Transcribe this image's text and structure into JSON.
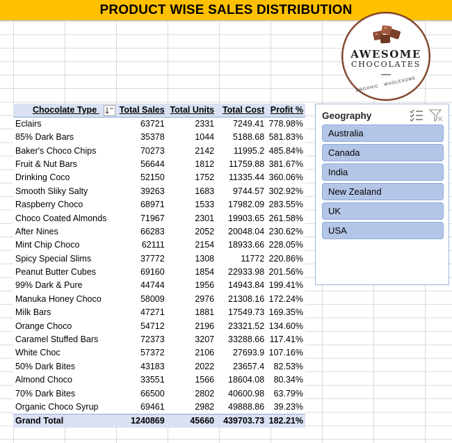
{
  "title": "PRODUCT WISE SALES DISTRIBUTION",
  "logo": {
    "name": "AWESOME",
    "subtitle": "CHOCOLATES",
    "tagline": "ORGANIC · WHOLESOME"
  },
  "pivot": {
    "headers": [
      "Chocolate Type",
      "Total Sales",
      "Total Units",
      "Total Cost",
      "Profit %"
    ],
    "rows": [
      [
        "Eclairs",
        "63721",
        "2331",
        "7249.41",
        "778.98%"
      ],
      [
        "85% Dark Bars",
        "35378",
        "1044",
        "5188.68",
        "581.83%"
      ],
      [
        "Baker's Choco Chips",
        "70273",
        "2142",
        "11995.2",
        "485.84%"
      ],
      [
        "Fruit & Nut Bars",
        "56644",
        "1812",
        "11759.88",
        "381.67%"
      ],
      [
        "Drinking Coco",
        "52150",
        "1752",
        "11335.44",
        "360.06%"
      ],
      [
        "Smooth Sliky Salty",
        "39263",
        "1683",
        "9744.57",
        "302.92%"
      ],
      [
        "Raspberry Choco",
        "68971",
        "1533",
        "17982.09",
        "283.55%"
      ],
      [
        "Choco Coated Almonds",
        "71967",
        "2301",
        "19903.65",
        "261.58%"
      ],
      [
        "After Nines",
        "66283",
        "2052",
        "20048.04",
        "230.62%"
      ],
      [
        "Mint Chip Choco",
        "62111",
        "2154",
        "18933.66",
        "228.05%"
      ],
      [
        "Spicy Special Slims",
        "37772",
        "1308",
        "11772",
        "220.86%"
      ],
      [
        "Peanut Butter Cubes",
        "69160",
        "1854",
        "22933.98",
        "201.56%"
      ],
      [
        "99% Dark & Pure",
        "44744",
        "1956",
        "14943.84",
        "199.41%"
      ],
      [
        "Manuka Honey Choco",
        "58009",
        "2976",
        "21308.16",
        "172.24%"
      ],
      [
        "Milk Bars",
        "47271",
        "1881",
        "17549.73",
        "169.35%"
      ],
      [
        "Orange Choco",
        "54712",
        "2196",
        "23321.52",
        "134.60%"
      ],
      [
        "Caramel Stuffed Bars",
        "72373",
        "3207",
        "33288.66",
        "117.41%"
      ],
      [
        "White Choc",
        "57372",
        "2106",
        "27693.9",
        "107.16%"
      ],
      [
        "50% Dark Bites",
        "43183",
        "2022",
        "23657.4",
        "82.53%"
      ],
      [
        "Almond Choco",
        "33551",
        "1566",
        "18604.08",
        "80.34%"
      ],
      [
        "70% Dark Bites",
        "66500",
        "2802",
        "40600.98",
        "63.79%"
      ],
      [
        "Organic Choco Syrup",
        "69461",
        "2982",
        "49888.86",
        "39.23%"
      ]
    ],
    "total": [
      "Grand Total",
      "1240869",
      "45660",
      "439703.73",
      "182.21%"
    ]
  },
  "slicer": {
    "title": "Geography",
    "items": [
      "Australia",
      "Canada",
      "India",
      "New Zealand",
      "UK",
      "USA"
    ],
    "icons": [
      "multi-select-icon",
      "clear-filter-icon"
    ]
  },
  "colors": {
    "title_bg": "#ffc000",
    "header_bg": "#d9e1f2",
    "slicer_item_bg": "#b4c6e7",
    "logo_ring": "#7a3b22"
  }
}
